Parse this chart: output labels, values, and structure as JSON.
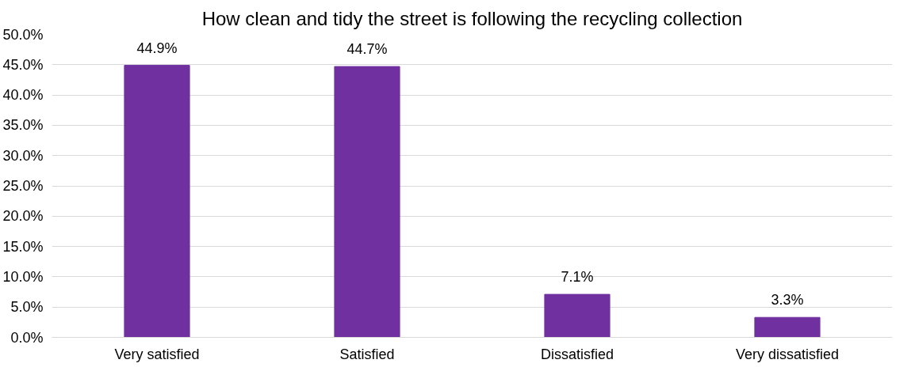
{
  "chart_data": {
    "type": "bar",
    "title": "How clean and tidy the street is following the recycling collection",
    "categories": [
      "Very satisfied",
      "Satisfied",
      "Dissatisfied",
      "Very dissatisfied"
    ],
    "values": [
      44.9,
      44.7,
      7.1,
      3.3
    ],
    "color": "#7030a0",
    "value_labels": [
      "44.9%",
      "44.7%",
      "7.1%",
      "3.3%"
    ],
    "ylim": [
      0,
      50
    ],
    "yticks": [
      {
        "value": 0,
        "label": "0.0%"
      },
      {
        "value": 5,
        "label": "5.0%"
      },
      {
        "value": 10,
        "label": "10.0%"
      },
      {
        "value": 15,
        "label": "15.0%"
      },
      {
        "value": 20,
        "label": "20.0%"
      },
      {
        "value": 25,
        "label": "25.0%"
      },
      {
        "value": 30,
        "label": "30.0%"
      },
      {
        "value": 35,
        "label": "35.0%"
      },
      {
        "value": 40,
        "label": "40.0%"
      },
      {
        "value": 45,
        "label": "45.0%"
      },
      {
        "value": 50,
        "label": "50.0%"
      }
    ],
    "grid": "y"
  }
}
